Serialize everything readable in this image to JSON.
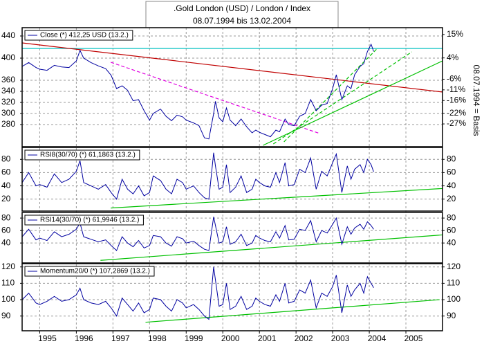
{
  "chart_data": [
    {
      "type": "line",
      "title": ".Gold London (USD) / London / Index",
      "subtitle": "08.07.1994 bis 13.02.2004",
      "xlim": [
        1994.52,
        2006.0
      ],
      "x": [
        1994.52,
        1994.7,
        1994.9,
        1995.0,
        1995.2,
        1995.4,
        1995.6,
        1995.8,
        1996.0,
        1996.1,
        1996.2,
        1996.4,
        1996.6,
        1996.8,
        1996.95,
        1997.1,
        1997.25,
        1997.4,
        1997.55,
        1997.7,
        1997.85,
        1998.0,
        1998.1,
        1998.3,
        1998.45,
        1998.6,
        1998.75,
        1998.9,
        1999.0,
        1999.2,
        1999.35,
        1999.5,
        1999.62,
        1999.75,
        1999.8,
        1999.9,
        2000.0,
        2000.1,
        2000.2,
        2000.35,
        2000.5,
        2000.65,
        2000.8,
        2000.9,
        2001.0,
        2001.15,
        2001.3,
        2001.45,
        2001.55,
        2001.7,
        2001.8,
        2001.95,
        2002.1,
        2002.25,
        2002.4,
        2002.55,
        2002.7,
        2002.85,
        2003.0,
        2003.1,
        2003.25,
        2003.4,
        2003.5,
        2003.6,
        2003.75,
        2003.85,
        2003.95,
        2004.05,
        2004.12
      ],
      "series": [
        {
          "name": "Close (*) 412,25 USD (13.2.)",
          "color": "#0000a0",
          "values": [
            385,
            392,
            383,
            380,
            378,
            387,
            384,
            383,
            395,
            414,
            400,
            392,
            386,
            381,
            369,
            345,
            350,
            342,
            323,
            325,
            305,
            288,
            300,
            308,
            295,
            287,
            297,
            294,
            288,
            283,
            278,
            256,
            254,
            300,
            322,
            292,
            285,
            310,
            288,
            278,
            290,
            276,
            265,
            270,
            266,
            262,
            258,
            270,
            267,
            290,
            280,
            278,
            295,
            300,
            325,
            305,
            315,
            318,
            345,
            370,
            325,
            350,
            345,
            370,
            385,
            390,
            412,
            425,
            412.25
          ]
        }
      ],
      "ylim": [
        240,
        455
      ],
      "yticks": [
        280,
        300,
        320,
        340,
        360,
        400,
        440
      ],
      "y2lim": [
        -37.7,
        18.2
      ],
      "y2ticks": [
        {
          "value": -27,
          "label": "-27%"
        },
        {
          "value": -22,
          "label": "-22%"
        },
        {
          "value": -16,
          "label": "-16%"
        },
        {
          "value": -11,
          "label": "-11%"
        },
        {
          "value": -6,
          "label": "-6%"
        },
        {
          "value": 4,
          "label": "4%"
        },
        {
          "value": 15,
          "label": "15%"
        }
      ],
      "y2_label": "08.07.1994 = Basis",
      "grid": true,
      "trend_lines": [
        {
          "color": "#00c0c0",
          "dash": false,
          "points": [
            [
              1994.52,
              417.5
            ],
            [
              2006.0,
              417.5
            ]
          ]
        },
        {
          "color": "#c00000",
          "dash": false,
          "points": [
            [
              1994.52,
              427.5
            ],
            [
              2006.0,
              338.75
            ]
          ]
        },
        {
          "color": "#e000e0",
          "dash": true,
          "points": [
            [
              1996.94,
              392.5
            ],
            [
              2002.65,
              263.75
            ]
          ]
        },
        {
          "color": "#00c000",
          "dash": false,
          "points": [
            [
              2001.1,
              242.5
            ],
            [
              2006.0,
              395
            ]
          ]
        },
        {
          "color": "#00c000",
          "dash": true,
          "points": [
            [
              2001.38,
              245
            ],
            [
              2005.16,
              411.25
            ]
          ]
        },
        {
          "color": "#00c000",
          "dash": true,
          "points": [
            [
              2001.67,
              248.75
            ],
            [
              2004.22,
              417.5
            ]
          ]
        }
      ]
    },
    {
      "type": "line",
      "xlim": [
        1994.52,
        2006.0
      ],
      "x": [
        1994.52,
        1994.7,
        1994.9,
        1995.0,
        1995.2,
        1995.4,
        1995.6,
        1995.8,
        1996.0,
        1996.1,
        1996.2,
        1996.4,
        1996.6,
        1996.8,
        1996.95,
        1997.1,
        1997.25,
        1997.4,
        1997.55,
        1997.7,
        1997.85,
        1998.0,
        1998.1,
        1998.3,
        1998.45,
        1998.6,
        1998.75,
        1998.9,
        1999.0,
        1999.2,
        1999.35,
        1999.5,
        1999.62,
        1999.75,
        1999.8,
        1999.9,
        2000.0,
        2000.1,
        2000.2,
        2000.35,
        2000.5,
        2000.65,
        2000.8,
        2000.9,
        2001.0,
        2001.15,
        2001.3,
        2001.45,
        2001.55,
        2001.7,
        2001.8,
        2001.95,
        2002.1,
        2002.25,
        2002.4,
        2002.55,
        2002.7,
        2002.85,
        2003.0,
        2003.1,
        2003.25,
        2003.4,
        2003.5,
        2003.6,
        2003.75,
        2003.85,
        2003.95,
        2004.05,
        2004.12
      ],
      "series": [
        {
          "name": "RSI8(30/70) (*) 61,1863 (13.2.)",
          "color": "#0000a0",
          "values": [
            45,
            60,
            40,
            42,
            38,
            58,
            45,
            50,
            62,
            78,
            45,
            40,
            35,
            42,
            30,
            20,
            50,
            35,
            28,
            40,
            25,
            30,
            55,
            48,
            35,
            28,
            50,
            45,
            35,
            40,
            30,
            22,
            20,
            90,
            70,
            35,
            38,
            72,
            30,
            38,
            55,
            30,
            35,
            50,
            45,
            40,
            38,
            60,
            45,
            75,
            40,
            42,
            65,
            60,
            82,
            35,
            62,
            55,
            75,
            88,
            30,
            70,
            50,
            65,
            72,
            60,
            80,
            72,
            61.19
          ]
        }
      ],
      "ylim": [
        2,
        98
      ],
      "yticks": [
        20,
        40,
        60,
        80
      ],
      "grid": true,
      "trend_lines": [
        {
          "color": "#00c000",
          "dash": false,
          "points": [
            [
              1996.94,
              6.6
            ],
            [
              2006.0,
              36
            ]
          ]
        }
      ]
    },
    {
      "type": "line",
      "xlim": [
        1994.52,
        2006.0
      ],
      "x": [
        1994.52,
        1994.7,
        1994.9,
        1995.0,
        1995.2,
        1995.4,
        1995.6,
        1995.8,
        1996.0,
        1996.1,
        1996.2,
        1996.4,
        1996.6,
        1996.8,
        1996.95,
        1997.1,
        1997.25,
        1997.4,
        1997.55,
        1997.7,
        1997.85,
        1998.0,
        1998.1,
        1998.3,
        1998.45,
        1998.6,
        1998.75,
        1998.9,
        1999.0,
        1999.2,
        1999.35,
        1999.5,
        1999.62,
        1999.75,
        1999.8,
        1999.9,
        2000.0,
        2000.1,
        2000.2,
        2000.35,
        2000.5,
        2000.65,
        2000.8,
        2000.9,
        2001.0,
        2001.15,
        2001.3,
        2001.45,
        2001.55,
        2001.7,
        2001.8,
        2001.95,
        2002.1,
        2002.25,
        2002.4,
        2002.55,
        2002.7,
        2002.85,
        2003.0,
        2003.1,
        2003.25,
        2003.4,
        2003.5,
        2003.6,
        2003.75,
        2003.85,
        2003.95,
        2004.05,
        2004.12
      ],
      "series": [
        {
          "name": "RSI14(30/70) (*) 61,9946 (13.2.)",
          "color": "#0000a0",
          "values": [
            50,
            62,
            45,
            48,
            44,
            58,
            50,
            54,
            62,
            72,
            50,
            46,
            42,
            45,
            36,
            28,
            50,
            40,
            34,
            44,
            32,
            36,
            52,
            50,
            40,
            35,
            50,
            47,
            40,
            43,
            36,
            30,
            28,
            82,
            68,
            40,
            42,
            66,
            38,
            42,
            54,
            36,
            40,
            52,
            48,
            44,
            42,
            58,
            48,
            68,
            45,
            46,
            62,
            60,
            76,
            42,
            60,
            56,
            70,
            80,
            38,
            66,
            54,
            64,
            70,
            62,
            74,
            68,
            61.99
          ]
        }
      ],
      "ylim": [
        8,
        89
      ],
      "yticks": [
        40,
        60,
        80
      ],
      "grid": true,
      "trend_lines": [
        {
          "color": "#00c000",
          "dash": false,
          "points": [
            [
              1996.66,
              12.2
            ],
            [
              2006.0,
              53
            ]
          ]
        }
      ]
    },
    {
      "type": "line",
      "xlim": [
        1994.52,
        2006.0
      ],
      "x": [
        1994.52,
        1994.7,
        1994.9,
        1995.0,
        1995.2,
        1995.4,
        1995.6,
        1995.8,
        1996.0,
        1996.1,
        1996.2,
        1996.4,
        1996.6,
        1996.8,
        1996.95,
        1997.1,
        1997.25,
        1997.4,
        1997.55,
        1997.7,
        1997.85,
        1998.0,
        1998.1,
        1998.3,
        1998.45,
        1998.6,
        1998.75,
        1998.9,
        1999.0,
        1999.2,
        1999.35,
        1999.5,
        1999.62,
        1999.75,
        1999.8,
        1999.9,
        2000.0,
        2000.1,
        2000.2,
        2000.35,
        2000.5,
        2000.65,
        2000.8,
        2000.9,
        2001.0,
        2001.15,
        2001.3,
        2001.45,
        2001.55,
        2001.7,
        2001.8,
        2001.95,
        2002.1,
        2002.25,
        2002.4,
        2002.55,
        2002.7,
        2002.85,
        2003.0,
        2003.1,
        2003.25,
        2003.4,
        2003.5,
        2003.6,
        2003.75,
        2003.85,
        2003.95,
        2004.05,
        2004.12
      ],
      "series": [
        {
          "name": "Momentum20/0 (*) 107,2869 (13.2.)",
          "color": "#0000a0",
          "values": [
            100,
            104,
            98,
            97,
            99,
            102,
            99,
            100,
            103,
            107,
            100,
            98,
            97,
            99,
            95,
            90,
            101,
            97,
            93,
            98,
            92,
            94,
            101,
            100,
            96,
            93,
            100,
            98,
            95,
            97,
            94,
            90,
            88,
            120,
            112,
            96,
            97,
            110,
            94,
            96,
            102,
            94,
            96,
            101,
            99,
            97,
            96,
            103,
            99,
            110,
            98,
            99,
            106,
            104,
            112,
            95,
            104,
            102,
            108,
            115,
            92,
            109,
            102,
            106,
            110,
            104,
            114,
            110,
            107.29
          ]
        }
      ],
      "ylim": [
        81,
        122
      ],
      "yticks": [
        90,
        100,
        110,
        120
      ],
      "grid": true,
      "xticks": [
        1995,
        1996,
        1997,
        1998,
        1999,
        2000,
        2001,
        2002,
        2003,
        2004,
        2005
      ],
      "trend_lines": [
        {
          "color": "#00c000",
          "dash": false,
          "points": [
            [
              1997.89,
              86.2
            ],
            [
              2005.92,
              100
            ]
          ]
        }
      ]
    }
  ]
}
